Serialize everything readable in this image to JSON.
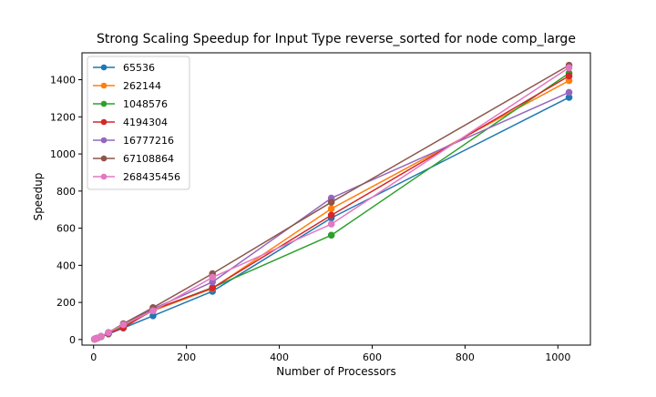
{
  "chart_data": {
    "type": "line",
    "title": "Strong Scaling Speedup for Input Type reverse_sorted for node comp_large",
    "xlabel": "Number of Processors",
    "ylabel": "Speedup",
    "xlim": [
      -25,
      1070
    ],
    "ylim": [
      -30,
      1545
    ],
    "xticks": [
      0,
      200,
      400,
      600,
      800,
      1000
    ],
    "yticks": [
      0,
      200,
      400,
      600,
      800,
      1000,
      1200,
      1400
    ],
    "grid": false,
    "legend_position": "top-left",
    "x": [
      2,
      4,
      8,
      16,
      32,
      64,
      128,
      256,
      512,
      1024
    ],
    "series": [
      {
        "name": "65536",
        "color": "#1f77b4",
        "values": [
          1.9,
          3.8,
          7.5,
          15,
          30,
          62,
          128,
          260,
          655,
          1305
        ]
      },
      {
        "name": "262144",
        "color": "#ff7f0e",
        "values": [
          2,
          4,
          8,
          16,
          33,
          70,
          155,
          275,
          705,
          1395
        ]
      },
      {
        "name": "1048576",
        "color": "#2ca02c",
        "values": [
          2,
          4,
          8,
          16,
          34,
          75,
          160,
          280,
          562,
          1435
        ]
      },
      {
        "name": "4194304",
        "color": "#d62728",
        "values": [
          2,
          4,
          8,
          16,
          34,
          63,
          160,
          278,
          670,
          1420
        ]
      },
      {
        "name": "16777216",
        "color": "#9467bd",
        "values": [
          2,
          4,
          8,
          17,
          38,
          82,
          165,
          310,
          762,
          1332
        ]
      },
      {
        "name": "67108864",
        "color": "#8c564b",
        "values": [
          2,
          4,
          8,
          17,
          38,
          85,
          172,
          355,
          740,
          1478
        ]
      },
      {
        "name": "268435456",
        "color": "#e377c2",
        "values": [
          2,
          4,
          8,
          17,
          38,
          80,
          155,
          335,
          622,
          1465
        ]
      }
    ]
  }
}
